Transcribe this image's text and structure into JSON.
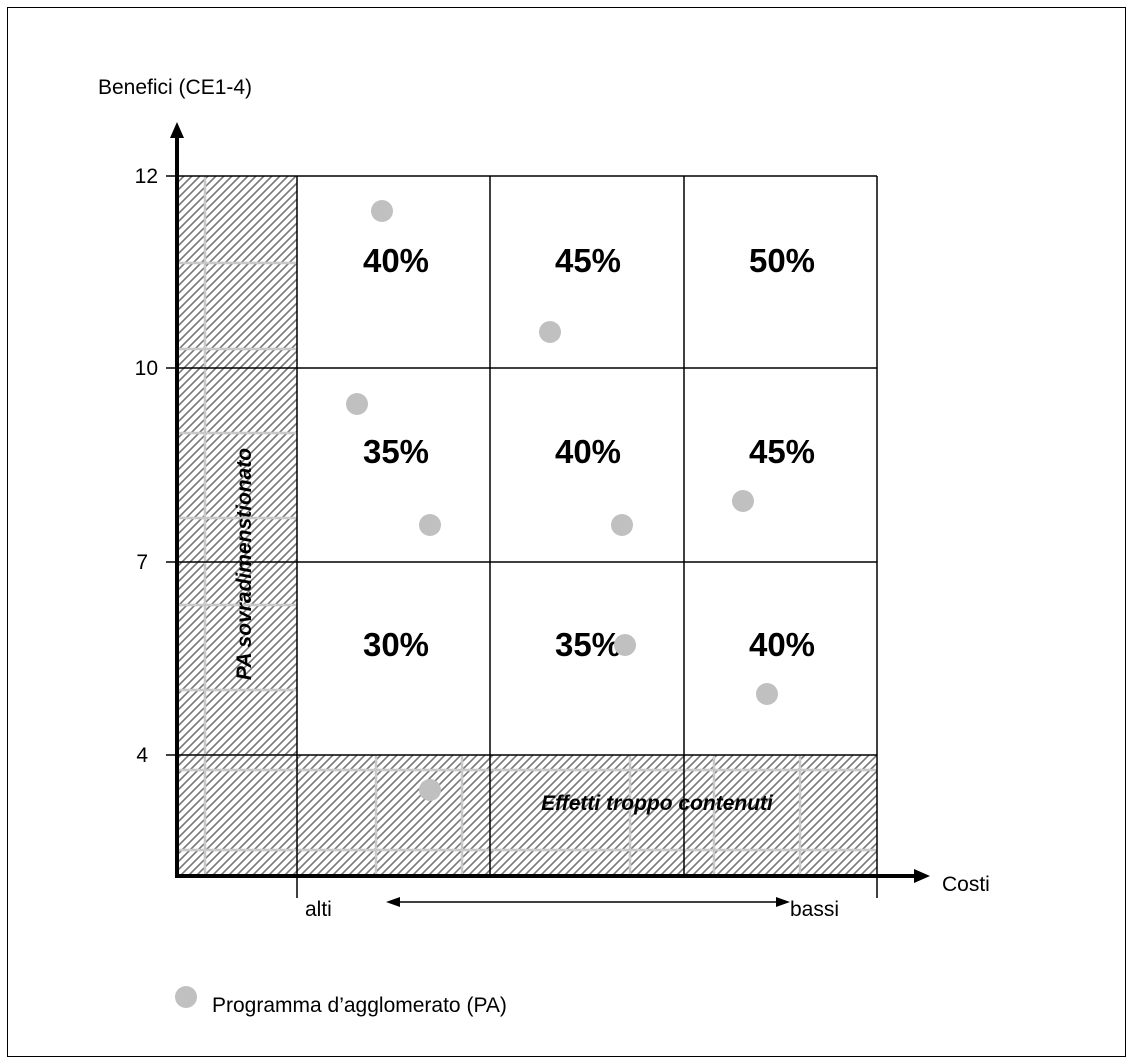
{
  "axes": {
    "y_label": "Benefici (CE1-4)",
    "x_label": "Costi",
    "y_ticks": [
      "12",
      "10",
      "7",
      "4"
    ],
    "x_low": "alti",
    "x_high": "bassi"
  },
  "zones": {
    "left": "PA sovradimenstionato",
    "bottom": "Effetti troppo contenuti"
  },
  "grid": {
    "rows": [
      [
        "40%",
        "45%",
        "50%"
      ],
      [
        "35%",
        "40%",
        "45%"
      ],
      [
        "30%",
        "35%",
        "40%"
      ]
    ]
  },
  "legend": {
    "label": "Programma d’agglomerato (PA)"
  },
  "colors": {
    "point": "#c0c0c0",
    "hatch": "#777777"
  }
}
